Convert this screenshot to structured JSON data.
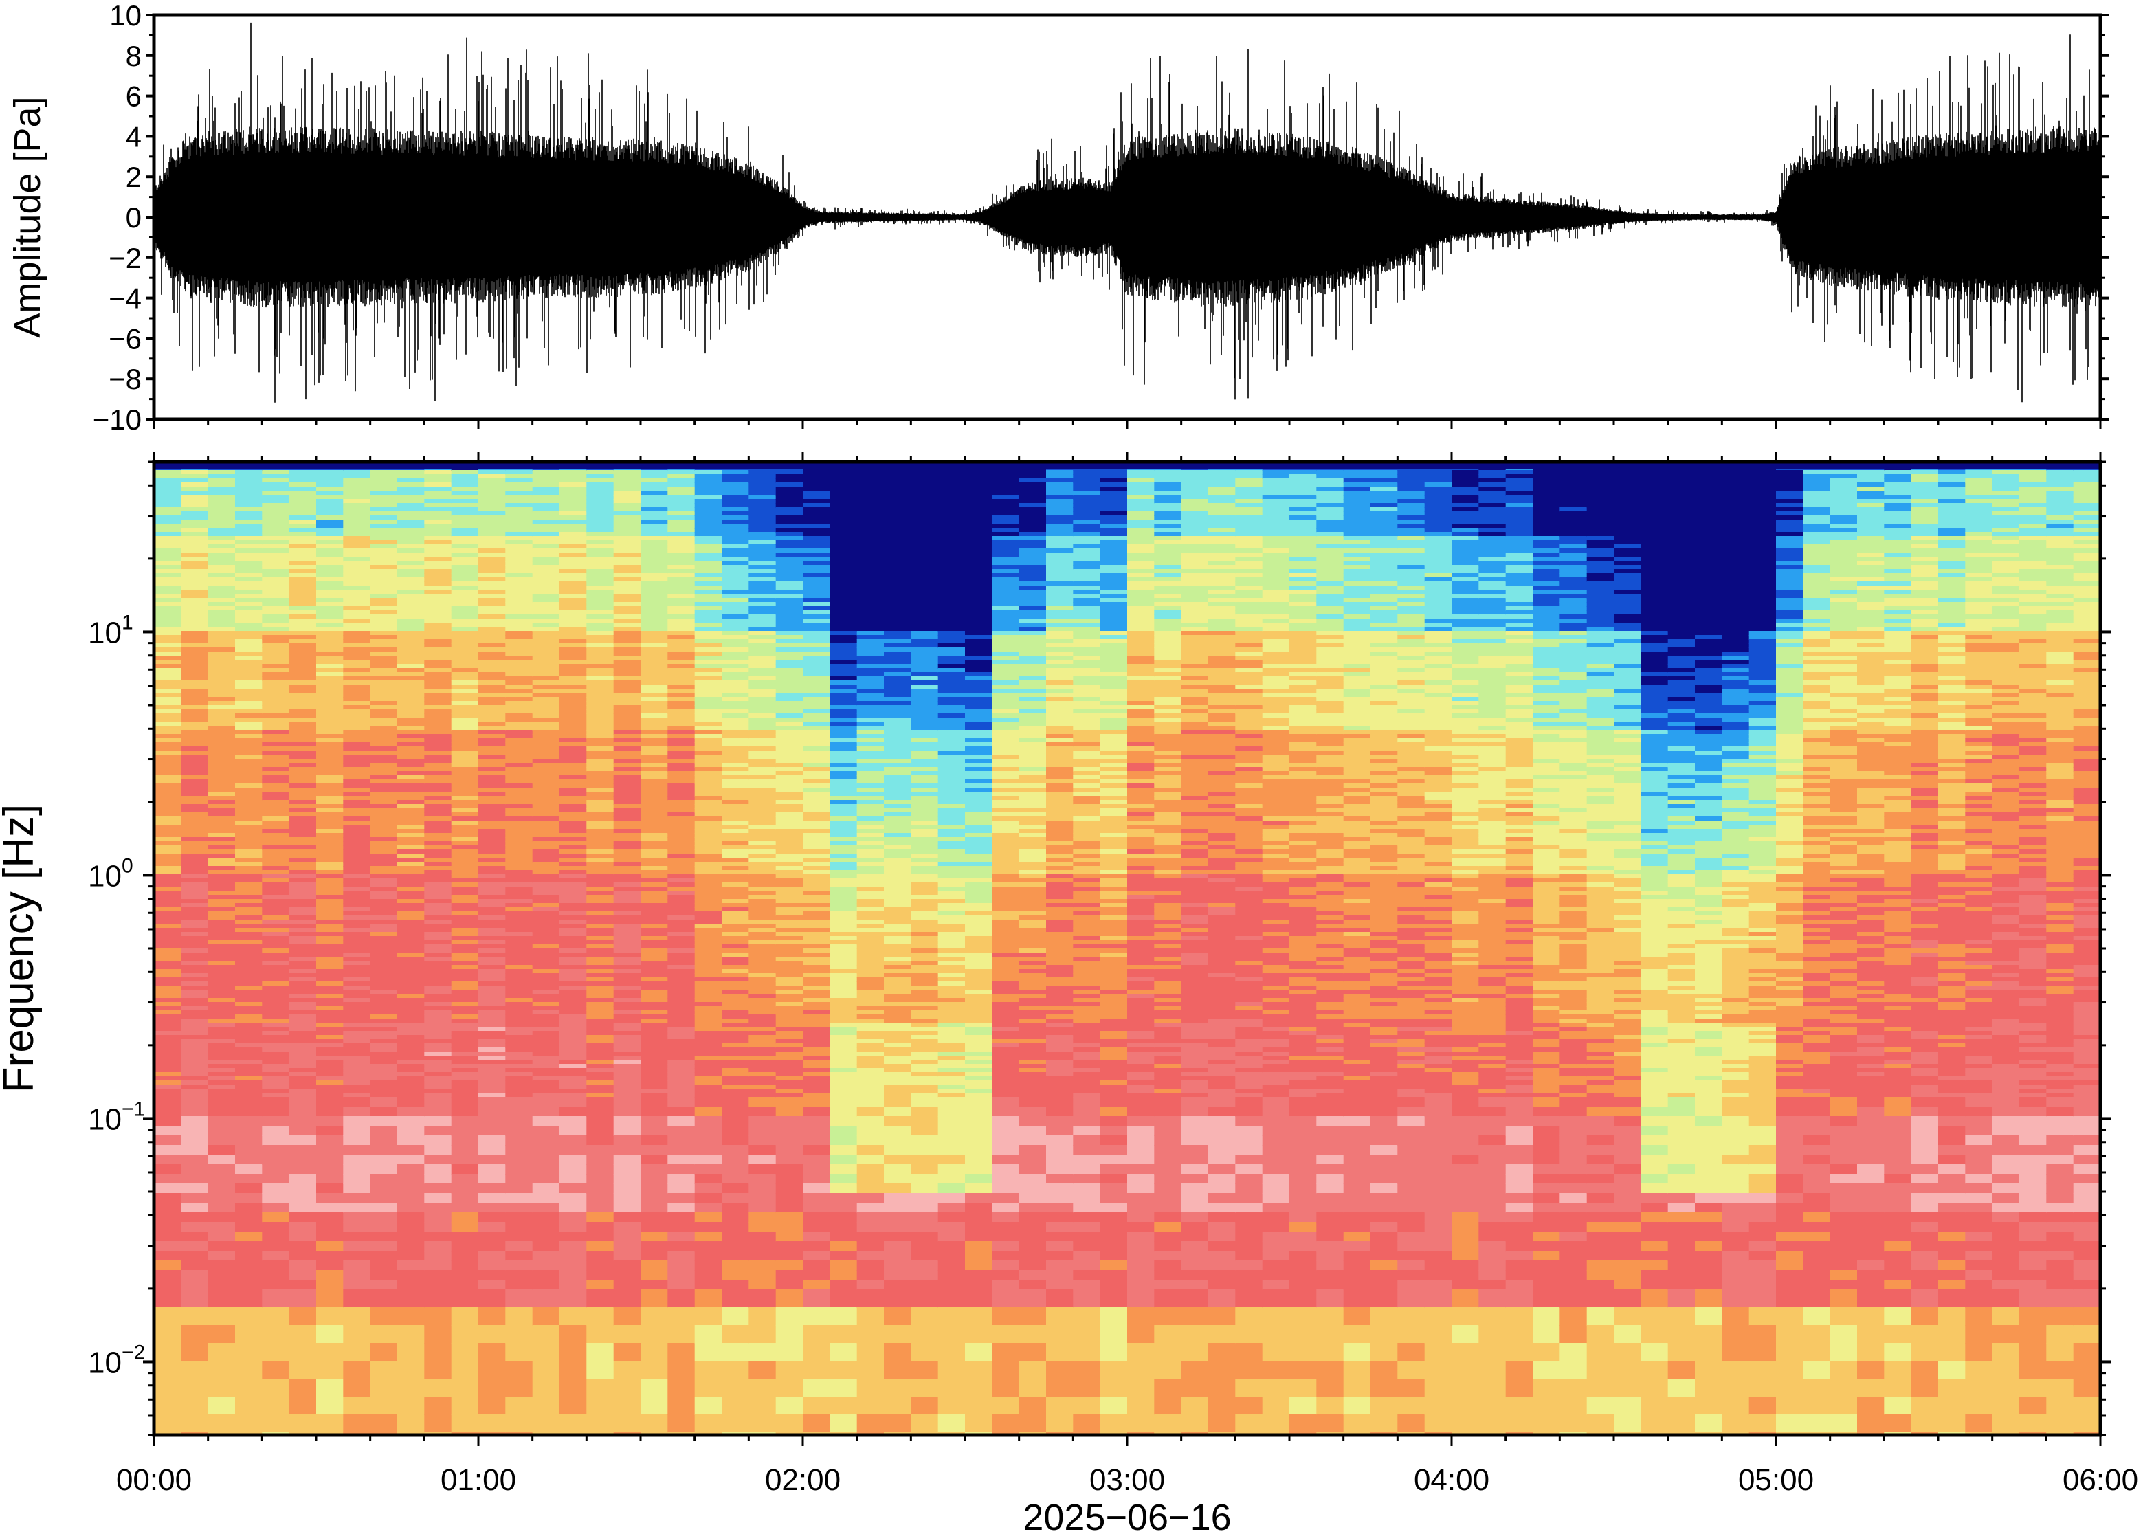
{
  "chart_data": [
    {
      "type": "line",
      "ylabel": "Amplitude [Pa]",
      "ylim": [
        -10,
        10
      ],
      "yticks": [
        10,
        8,
        6,
        4,
        2,
        0,
        -2,
        -4,
        -6,
        -8,
        -10
      ],
      "ytick_labels": [
        "10",
        "8",
        "6",
        "4",
        "2",
        "0",
        "−2",
        "−4",
        "−6",
        "−8",
        "−10"
      ],
      "xlim_hours": [
        0,
        6
      ],
      "series": [
        {
          "envelope_hours": [
            0.0,
            0.05,
            0.1,
            0.3,
            0.5,
            0.8,
            1.0,
            1.2,
            1.4,
            1.6,
            1.75,
            1.85,
            1.95,
            2.0,
            2.05,
            2.2,
            2.4,
            2.5,
            2.55,
            2.7,
            2.85,
            2.95,
            3.0,
            3.3,
            3.5,
            3.7,
            3.85,
            4.0,
            4.2,
            4.4,
            4.55,
            4.65,
            4.8,
            4.95,
            5.0,
            5.05,
            5.2,
            5.5,
            5.8,
            6.0
          ],
          "envelope_pa": [
            1.5,
            3.0,
            4.0,
            4.5,
            4.5,
            4.3,
            4.3,
            4.0,
            4.0,
            3.8,
            3.2,
            2.6,
            1.5,
            0.6,
            0.3,
            0.25,
            0.18,
            0.15,
            0.3,
            1.8,
            2.0,
            1.8,
            4.0,
            4.5,
            4.2,
            3.5,
            2.5,
            1.2,
            0.9,
            0.6,
            0.25,
            0.18,
            0.15,
            0.15,
            0.3,
            3.0,
            3.5,
            4.2,
            4.5,
            4.5
          ]
        }
      ]
    },
    {
      "type": "heatmap",
      "ylabel": "Frequency [Hz]",
      "y_scale": "log",
      "ylim_hz": [
        0.005,
        50
      ],
      "yticks_hz": [
        10,
        1,
        0.1,
        0.01
      ],
      "ytick_labels": [
        {
          "base": "10",
          "exp": "1"
        },
        {
          "base": "10",
          "exp": "0"
        },
        {
          "base": "10",
          "exp": "−1"
        },
        {
          "base": "10",
          "exp": "−2"
        }
      ],
      "xlabel": "2025−06−16",
      "xticks": [
        "00:00",
        "01:00",
        "02:00",
        "03:00",
        "04:00",
        "05:00",
        "06:00"
      ],
      "colormap": [
        "#0a0a82",
        "#1450d2",
        "#2aa0f0",
        "#7ce6e6",
        "#c8f096",
        "#f0f08c",
        "#f8c864",
        "#f89650",
        "#f06464",
        "#f07878",
        "#f8b4b4"
      ],
      "quiet_intervals_hours": [
        [
          2.05,
          2.6
        ],
        [
          4.62,
          4.97
        ]
      ]
    }
  ]
}
